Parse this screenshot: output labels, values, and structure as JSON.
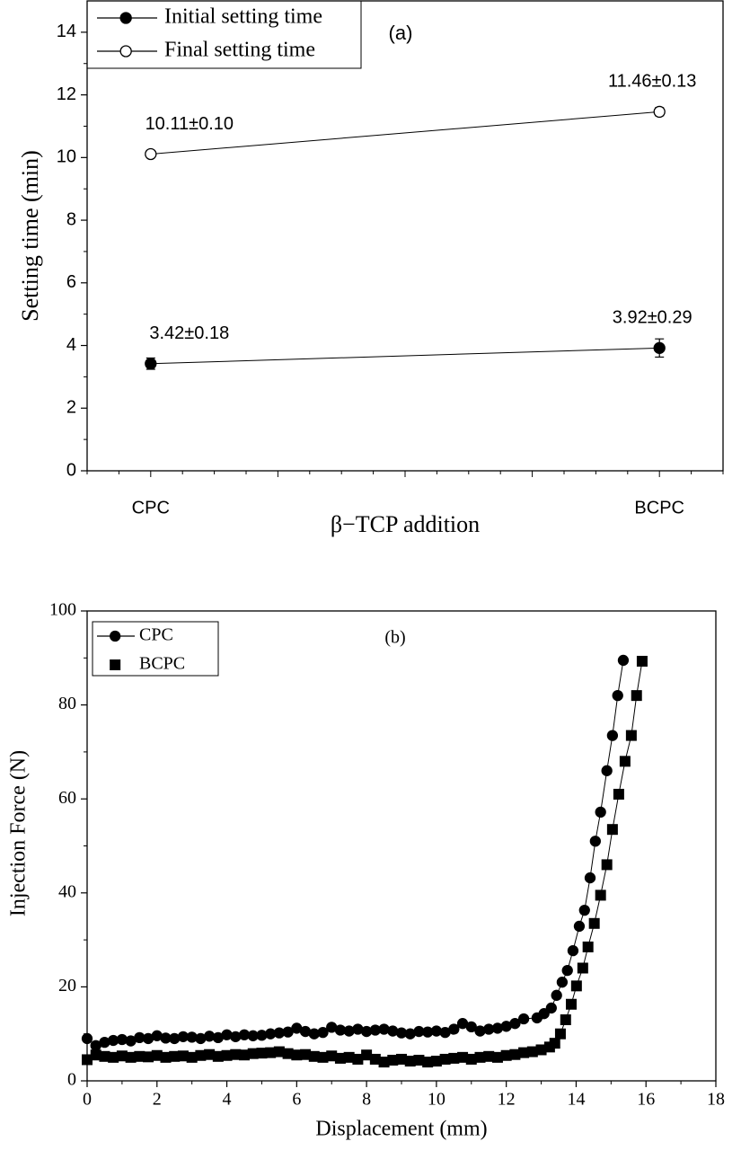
{
  "chart_data": [
    {
      "type": "line",
      "annotation": "(a)",
      "x_label": "β−TCP addition",
      "y_label": "Setting time (min)",
      "categories": [
        "CPC",
        "BCPC"
      ],
      "ylim": [
        0,
        15
      ],
      "yticks": [
        0,
        2,
        4,
        6,
        8,
        10,
        12,
        14
      ],
      "legend": "upper left",
      "series": [
        {
          "name": "Initial setting time",
          "color": "#000000",
          "marker": "circle",
          "filled": true,
          "values": [
            3.42,
            3.92
          ],
          "errors": [
            0.18,
            0.29
          ],
          "value_labels": [
            "3.42±0.18",
            "3.92±0.29"
          ]
        },
        {
          "name": "Final setting time",
          "color": "#000000",
          "marker": "circle",
          "filled": false,
          "values": [
            10.11,
            11.46
          ],
          "errors": [
            0.1,
            0.13
          ],
          "value_labels": [
            "10.11±0.10",
            "11.46±0.13"
          ]
        }
      ]
    },
    {
      "type": "line",
      "annotation": "(b)",
      "x_label": "Displacement (mm)",
      "y_label": "Injection Force (N)",
      "xlim": [
        0,
        18
      ],
      "xticks": [
        0,
        2,
        4,
        6,
        8,
        10,
        12,
        14,
        16,
        18
      ],
      "ylim": [
        0,
        100
      ],
      "yticks": [
        0,
        20,
        40,
        60,
        80,
        100
      ],
      "legend": "upper left",
      "series": [
        {
          "name": "CPC",
          "color": "#000000",
          "marker": "circle",
          "filled": true,
          "legend_line": true,
          "x": [
            0,
            0.25,
            0.5,
            0.75,
            1,
            1.25,
            1.5,
            1.75,
            2,
            2.25,
            2.5,
            2.75,
            3,
            3.25,
            3.5,
            3.75,
            4,
            4.25,
            4.5,
            4.75,
            5,
            5.25,
            5.5,
            5.75,
            6,
            6.25,
            6.5,
            6.75,
            7,
            7.25,
            7.5,
            7.75,
            8,
            8.25,
            8.5,
            8.75,
            9,
            9.25,
            9.5,
            9.75,
            10,
            10.25,
            10.5,
            10.75,
            11,
            11.25,
            11.5,
            11.75,
            12,
            12.25,
            12.5,
            12.88,
            13.08,
            13.29,
            13.44,
            13.6,
            13.75,
            13.91,
            14.09,
            14.24,
            14.4,
            14.55,
            14.7,
            14.88,
            15.04,
            15.19,
            15.35
          ],
          "values": [
            9.0,
            7.5,
            8.2,
            8.6,
            8.8,
            8.5,
            9.2,
            9.0,
            9.6,
            9.1,
            9.0,
            9.4,
            9.3,
            9.0,
            9.5,
            9.2,
            9.8,
            9.4,
            9.8,
            9.6,
            9.7,
            10.0,
            10.2,
            10.4,
            11.2,
            10.5,
            10.0,
            10.3,
            11.4,
            10.8,
            10.6,
            11.0,
            10.5,
            10.8,
            11.0,
            10.6,
            10.2,
            10.0,
            10.5,
            10.4,
            10.6,
            10.3,
            11.0,
            12.2,
            11.5,
            10.6,
            11.0,
            11.2,
            11.6,
            12.2,
            13.2,
            13.4,
            14.3,
            15.5,
            18.2,
            21,
            23.5,
            27.7,
            32.9,
            36.3,
            43.2,
            51,
            57.2,
            66,
            73.5,
            82,
            89.5
          ]
        },
        {
          "name": "BCPC",
          "color": "#000000",
          "marker": "square",
          "filled": true,
          "legend_line": false,
          "x": [
            0,
            0.25,
            0.5,
            0.75,
            1,
            1.25,
            1.5,
            1.75,
            2,
            2.25,
            2.5,
            2.75,
            3,
            3.25,
            3.5,
            3.75,
            4,
            4.25,
            4.5,
            4.75,
            5,
            5.25,
            5.5,
            5.75,
            6,
            6.25,
            6.5,
            6.75,
            7,
            7.25,
            7.5,
            7.75,
            8,
            8.25,
            8.5,
            8.75,
            9,
            9.25,
            9.5,
            9.75,
            10,
            10.25,
            10.5,
            10.75,
            11,
            11.25,
            11.5,
            11.75,
            12,
            12.25,
            12.5,
            12.75,
            13,
            13.24,
            13.39,
            13.55,
            13.7,
            13.86,
            14.01,
            14.19,
            14.34,
            14.52,
            14.7,
            14.88,
            15.04,
            15.22,
            15.4,
            15.58,
            15.73,
            15.89
          ],
          "values": [
            4.5,
            5.5,
            5.2,
            5.0,
            5.3,
            5.0,
            5.2,
            5.1,
            5.4,
            5.0,
            5.2,
            5.3,
            5.0,
            5.4,
            5.6,
            5.2,
            5.4,
            5.6,
            5.5,
            5.8,
            5.9,
            6.0,
            6.2,
            5.8,
            5.5,
            5.6,
            5.2,
            5.0,
            5.3,
            4.8,
            5.0,
            4.6,
            5.5,
            4.6,
            4.0,
            4.4,
            4.6,
            4.2,
            4.4,
            4.0,
            4.2,
            4.6,
            4.8,
            5.0,
            4.6,
            5.0,
            5.2,
            5.0,
            5.4,
            5.6,
            6.0,
            6.2,
            6.6,
            7.2,
            8,
            10,
            13,
            16.3,
            20.2,
            24,
            28.5,
            33.5,
            39.5,
            46,
            53.5,
            61,
            68,
            73.5,
            82,
            89.3
          ]
        }
      ]
    }
  ]
}
